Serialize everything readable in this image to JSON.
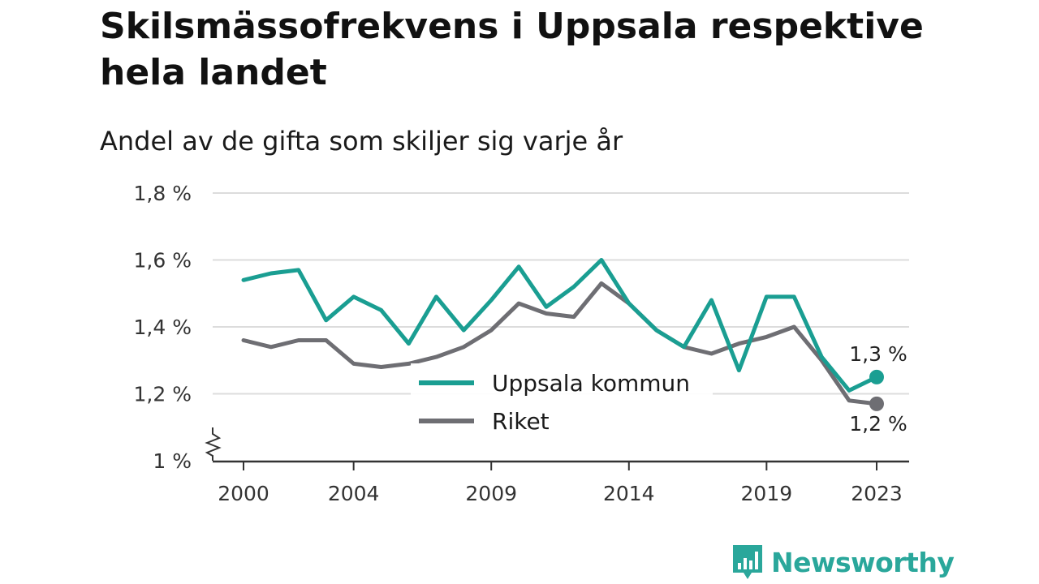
{
  "title": "Skilsmässofrekvens i Uppsala respektive hela landet",
  "subtitle": "Andel av de gifta som skiljer sig varje år",
  "brand": {
    "name": "Newsworthy",
    "icon": "newsworthy-logo-icon",
    "color": "#2aa79b"
  },
  "chart_data": {
    "type": "line",
    "title": "Skilsmässofrekvens i Uppsala respektive hela landet",
    "subtitle": "Andel av de gifta som skiljer sig varje år",
    "x": [
      2000,
      2001,
      2002,
      2003,
      2004,
      2005,
      2006,
      2007,
      2008,
      2009,
      2010,
      2011,
      2012,
      2013,
      2014,
      2015,
      2016,
      2017,
      2018,
      2019,
      2020,
      2021,
      2022,
      2023
    ],
    "x_ticks": [
      2000,
      2004,
      2009,
      2014,
      2019,
      2023
    ],
    "x_tick_labels": [
      "2000",
      "2004",
      "2009",
      "2014",
      "2019",
      "2023"
    ],
    "y_ticks": [
      1.0,
      1.2,
      1.4,
      1.6,
      1.8
    ],
    "y_tick_labels": [
      "1 %",
      "1,2 %",
      "1,4 %",
      "1,6 %",
      "1,8 %"
    ],
    "ylim": [
      1.0,
      1.8
    ],
    "y_axis_break": true,
    "grid": true,
    "legend_position": "center-bottom",
    "series": [
      {
        "name": "Uppsala kommun",
        "color": "#1a9e92",
        "values": [
          1.54,
          1.56,
          1.57,
          1.42,
          1.49,
          1.45,
          1.35,
          1.49,
          1.39,
          1.48,
          1.58,
          1.46,
          1.52,
          1.6,
          1.47,
          1.39,
          1.34,
          1.48,
          1.27,
          1.49,
          1.49,
          1.31,
          1.21,
          1.25
        ],
        "end_label": "1,3 %"
      },
      {
        "name": "Riket",
        "color": "#6e6e73",
        "values": [
          1.36,
          1.34,
          1.36,
          1.36,
          1.29,
          1.28,
          1.29,
          1.31,
          1.34,
          1.39,
          1.47,
          1.44,
          1.43,
          1.53,
          1.47,
          1.39,
          1.34,
          1.32,
          1.35,
          1.37,
          1.4,
          1.3,
          1.18,
          1.17
        ],
        "end_label": "1,2 %"
      }
    ]
  }
}
